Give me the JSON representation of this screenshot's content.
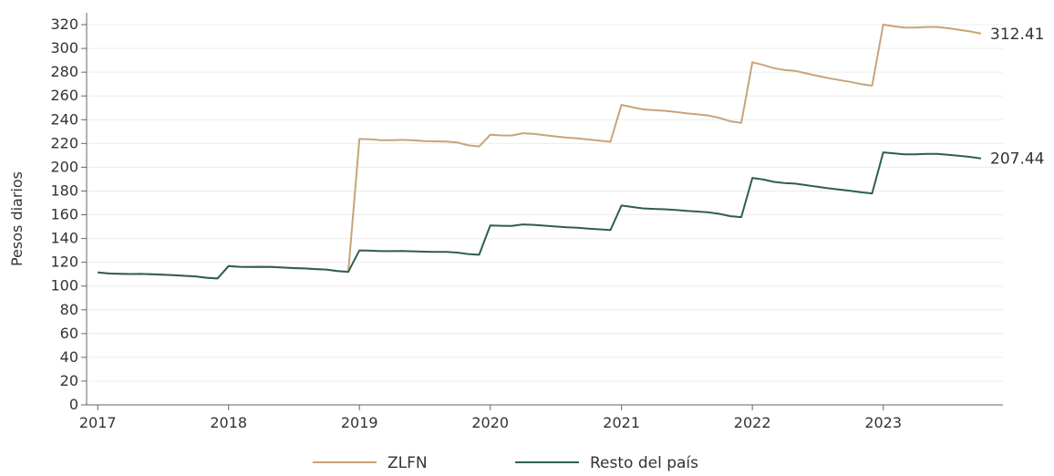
{
  "chart_data": {
    "type": "line",
    "title": "",
    "xlabel": "",
    "ylabel": "Pesos diarios",
    "xlim": [
      "2016-12-01",
      "2023-12-01"
    ],
    "ylim": [
      0,
      330
    ],
    "x_ticks": [
      "2017",
      "2018",
      "2019",
      "2020",
      "2021",
      "2022",
      "2023"
    ],
    "y_ticks": [
      0,
      20,
      40,
      60,
      80,
      100,
      120,
      140,
      160,
      180,
      200,
      220,
      240,
      260,
      280,
      300,
      320
    ],
    "grid": "horizontal",
    "legend": "bottom",
    "series": [
      {
        "name": "ZLFN",
        "color": "#C9A37A",
        "end_label": "312.41",
        "points": [
          [
            "2017-01",
            111.5
          ],
          [
            "2017-02",
            110.6
          ],
          [
            "2017-03",
            110.3
          ],
          [
            "2017-04",
            110.1
          ],
          [
            "2017-05",
            110.2
          ],
          [
            "2017-06",
            109.9
          ],
          [
            "2017-07",
            109.5
          ],
          [
            "2017-08",
            109.1
          ],
          [
            "2017-09",
            108.6
          ],
          [
            "2017-10",
            108.1
          ],
          [
            "2017-11",
            107.0
          ],
          [
            "2017-12",
            106.4
          ],
          [
            "2018-01",
            116.8
          ],
          [
            "2018-02",
            116.2
          ],
          [
            "2018-03",
            116.0
          ],
          [
            "2018-04",
            116.2
          ],
          [
            "2018-05",
            116.1
          ],
          [
            "2018-06",
            115.6
          ],
          [
            "2018-07",
            115.1
          ],
          [
            "2018-08",
            114.8
          ],
          [
            "2018-09",
            114.3
          ],
          [
            "2018-10",
            113.9
          ],
          [
            "2018-11",
            112.6
          ],
          [
            "2018-12",
            112.0
          ],
          [
            "2019-01",
            223.8
          ],
          [
            "2019-02",
            223.5
          ],
          [
            "2019-03",
            222.8
          ],
          [
            "2019-04",
            222.8
          ],
          [
            "2019-05",
            223.0
          ],
          [
            "2019-06",
            222.6
          ],
          [
            "2019-07",
            222.0
          ],
          [
            "2019-08",
            221.8
          ],
          [
            "2019-09",
            221.6
          ],
          [
            "2019-10",
            220.8
          ],
          [
            "2019-11",
            218.4
          ],
          [
            "2019-12",
            217.5
          ],
          [
            "2020-01",
            227.3
          ],
          [
            "2020-02",
            226.8
          ],
          [
            "2020-03",
            226.7
          ],
          [
            "2020-04",
            228.6
          ],
          [
            "2020-05",
            228.1
          ],
          [
            "2020-06",
            227.0
          ],
          [
            "2020-07",
            225.9
          ],
          [
            "2020-08",
            224.9
          ],
          [
            "2020-09",
            224.3
          ],
          [
            "2020-10",
            223.3
          ],
          [
            "2020-11",
            222.3
          ],
          [
            "2020-12",
            221.4
          ],
          [
            "2021-01",
            252.5
          ],
          [
            "2021-02",
            250.5
          ],
          [
            "2021-03",
            248.7
          ],
          [
            "2021-04",
            248.0
          ],
          [
            "2021-05",
            247.5
          ],
          [
            "2021-06",
            246.5
          ],
          [
            "2021-07",
            245.4
          ],
          [
            "2021-08",
            244.5
          ],
          [
            "2021-09",
            243.4
          ],
          [
            "2021-10",
            241.5
          ],
          [
            "2021-11",
            238.6
          ],
          [
            "2021-12",
            237.3
          ],
          [
            "2022-01",
            288.3
          ],
          [
            "2022-02",
            286.0
          ],
          [
            "2022-03",
            283.4
          ],
          [
            "2022-04",
            281.8
          ],
          [
            "2022-05",
            281.0
          ],
          [
            "2022-06",
            279.0
          ],
          [
            "2022-07",
            277.0
          ],
          [
            "2022-08",
            275.0
          ],
          [
            "2022-09",
            273.4
          ],
          [
            "2022-10",
            271.8
          ],
          [
            "2022-11",
            270.0
          ],
          [
            "2022-12",
            268.6
          ],
          [
            "2023-01",
            320.0
          ],
          [
            "2023-02",
            318.6
          ],
          [
            "2023-03",
            317.5
          ],
          [
            "2023-04",
            317.5
          ],
          [
            "2023-05",
            318.0
          ],
          [
            "2023-06",
            318.0
          ],
          [
            "2023-07",
            317.0
          ],
          [
            "2023-08",
            315.6
          ],
          [
            "2023-09",
            314.3
          ],
          [
            "2023-10",
            312.41
          ]
        ]
      },
      {
        "name": "Resto del país",
        "color": "#2F5D54",
        "end_label": "207.44",
        "points": [
          [
            "2017-01",
            111.5
          ],
          [
            "2017-02",
            110.6
          ],
          [
            "2017-03",
            110.3
          ],
          [
            "2017-04",
            110.1
          ],
          [
            "2017-05",
            110.2
          ],
          [
            "2017-06",
            109.9
          ],
          [
            "2017-07",
            109.5
          ],
          [
            "2017-08",
            109.1
          ],
          [
            "2017-09",
            108.6
          ],
          [
            "2017-10",
            108.1
          ],
          [
            "2017-11",
            107.0
          ],
          [
            "2017-12",
            106.4
          ],
          [
            "2018-01",
            116.8
          ],
          [
            "2018-02",
            116.2
          ],
          [
            "2018-03",
            116.0
          ],
          [
            "2018-04",
            116.2
          ],
          [
            "2018-05",
            116.1
          ],
          [
            "2018-06",
            115.6
          ],
          [
            "2018-07",
            115.1
          ],
          [
            "2018-08",
            114.8
          ],
          [
            "2018-09",
            114.3
          ],
          [
            "2018-10",
            113.9
          ],
          [
            "2018-11",
            112.6
          ],
          [
            "2018-12",
            112.0
          ],
          [
            "2019-01",
            130.0
          ],
          [
            "2019-02",
            129.8
          ],
          [
            "2019-03",
            129.4
          ],
          [
            "2019-04",
            129.4
          ],
          [
            "2019-05",
            129.5
          ],
          [
            "2019-06",
            129.2
          ],
          [
            "2019-07",
            128.9
          ],
          [
            "2019-08",
            128.8
          ],
          [
            "2019-09",
            128.7
          ],
          [
            "2019-10",
            128.2
          ],
          [
            "2019-11",
            126.9
          ],
          [
            "2019-12",
            126.3
          ],
          [
            "2020-01",
            151.0
          ],
          [
            "2020-02",
            150.7
          ],
          [
            "2020-03",
            150.6
          ],
          [
            "2020-04",
            151.9
          ],
          [
            "2020-05",
            151.5
          ],
          [
            "2020-06",
            150.8
          ],
          [
            "2020-07",
            150.1
          ],
          [
            "2020-08",
            149.4
          ],
          [
            "2020-09",
            149.0
          ],
          [
            "2020-10",
            148.3
          ],
          [
            "2020-11",
            147.7
          ],
          [
            "2020-12",
            147.1
          ],
          [
            "2021-01",
            167.8
          ],
          [
            "2021-02",
            166.5
          ],
          [
            "2021-03",
            165.4
          ],
          [
            "2021-04",
            164.9
          ],
          [
            "2021-05",
            164.6
          ],
          [
            "2021-06",
            164.0
          ],
          [
            "2021-07",
            163.3
          ],
          [
            "2021-08",
            162.7
          ],
          [
            "2021-09",
            162.0
          ],
          [
            "2021-10",
            160.8
          ],
          [
            "2021-11",
            158.8
          ],
          [
            "2021-12",
            158.0
          ],
          [
            "2022-01",
            191.0
          ],
          [
            "2022-02",
            189.6
          ],
          [
            "2022-03",
            187.7
          ],
          [
            "2022-04",
            186.7
          ],
          [
            "2022-05",
            186.2
          ],
          [
            "2022-06",
            184.9
          ],
          [
            "2022-07",
            183.6
          ],
          [
            "2022-08",
            182.3
          ],
          [
            "2022-09",
            181.2
          ],
          [
            "2022-10",
            180.2
          ],
          [
            "2022-11",
            178.9
          ],
          [
            "2022-12",
            178.0
          ],
          [
            "2023-01",
            212.5
          ],
          [
            "2023-02",
            211.6
          ],
          [
            "2023-03",
            210.8
          ],
          [
            "2023-04",
            210.8
          ],
          [
            "2023-05",
            211.2
          ],
          [
            "2023-06",
            211.2
          ],
          [
            "2023-07",
            210.5
          ],
          [
            "2023-08",
            209.6
          ],
          [
            "2023-09",
            208.7
          ],
          [
            "2023-10",
            207.44
          ]
        ]
      }
    ]
  }
}
